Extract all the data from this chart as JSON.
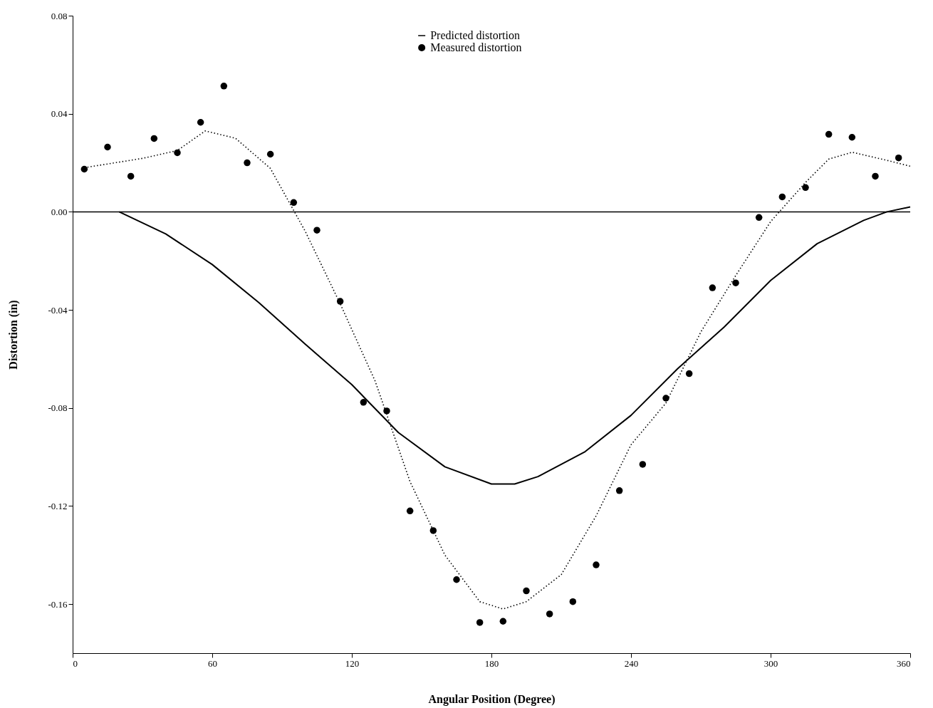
{
  "chart_data": {
    "type": "line",
    "xlabel": "Angular Position (Degree)",
    "ylabel": "Distortion (in)",
    "xlim": [
      0,
      360
    ],
    "xticks": [
      0,
      60,
      120,
      180,
      240,
      300,
      360
    ],
    "ylim": [
      -0.18,
      0.08
    ],
    "yticks": [
      {
        "value": 0.08,
        "label": "0.08"
      },
      {
        "value": 0.04,
        "label": "0.04"
      },
      {
        "value": 0,
        "label": "0.00"
      },
      {
        "value": -0.04,
        "label": "-0.04"
      },
      {
        "value": -0.08,
        "label": "-0.08"
      },
      {
        "value": -0.12,
        "label": "-0.12"
      },
      {
        "value": -0.16,
        "label": "-0.16"
      }
    ],
    "grid": false,
    "legend": "top",
    "ref_lines": [
      {
        "axis": "y",
        "value": 0,
        "color": "#000000"
      }
    ],
    "series": [
      {
        "name": "Predicted distortion",
        "type": "line",
        "color": "#000000",
        "line_style": "solid",
        "x": [
          20,
          40,
          60,
          80,
          100,
          120,
          140,
          160,
          180,
          190,
          200,
          220,
          240,
          260,
          280,
          300,
          320,
          340,
          350,
          360
        ],
        "values": [
          0,
          -0.009,
          -0.0215,
          -0.037,
          -0.054,
          -0.0705,
          -0.09,
          -0.104,
          -0.111,
          -0.111,
          -0.108,
          -0.098,
          -0.083,
          -0.064,
          -0.047,
          -0.028,
          -0.013,
          -0.0035,
          0,
          0.002
        ]
      },
      {
        "name": "Measured distortion",
        "type": "scatter",
        "marker": "circle",
        "color": "#000000",
        "x": [
          5,
          15,
          25,
          35,
          45,
          55,
          65,
          75,
          85,
          95,
          105,
          115,
          125,
          135,
          145,
          155,
          165,
          175,
          185,
          195,
          205,
          215,
          225,
          235,
          245,
          255,
          265,
          275,
          285,
          295,
          305,
          315,
          325,
          335,
          345,
          355
        ],
        "values": [
          0.0174,
          0.0264,
          0.0145,
          0.0299,
          0.0241,
          0.0365,
          0.0513,
          0.02,
          0.0235,
          0.0038,
          -0.0075,
          -0.0365,
          -0.0777,
          -0.0812,
          -0.122,
          -0.13,
          -0.15,
          -0.1675,
          -0.167,
          -0.1546,
          -0.164,
          -0.159,
          -0.144,
          -0.1137,
          -0.103,
          -0.076,
          -0.066,
          -0.031,
          -0.029,
          -0.0023,
          0.0061,
          0.0099,
          0.0316,
          0.0304,
          0.0145,
          0.022
        ]
      },
      {
        "type": "line",
        "color": "#000000",
        "line_style": "dotted",
        "x": [
          5,
          30,
          45,
          57,
          70,
          85,
          100,
          115,
          130,
          145,
          160,
          175,
          185,
          195,
          210,
          225,
          240,
          255,
          270,
          285,
          300,
          315,
          325,
          335,
          350,
          360
        ],
        "values": [
          0.018,
          0.0218,
          0.025,
          0.033,
          0.03,
          0.0177,
          -0.008,
          -0.0375,
          -0.069,
          -0.11,
          -0.14,
          -0.159,
          -0.162,
          -0.159,
          -0.148,
          -0.124,
          -0.095,
          -0.078,
          -0.049,
          -0.026,
          -0.004,
          0.012,
          0.0215,
          0.0243,
          0.021,
          0.0186
        ]
      }
    ]
  }
}
